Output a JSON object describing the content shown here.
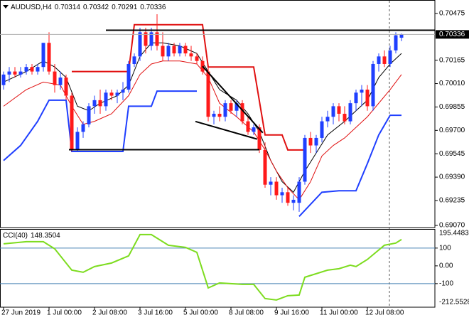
{
  "chart_data": {
    "type": "candlestick",
    "title": "AUDUSD,H4",
    "xlim": [
      -0.625,
      75.875
    ],
    "ylim": [
      0.6907,
      0.70564
    ],
    "yticks": [
      0.70475,
      0.70165,
      {
        "value": 0.7001,
        "label": "0.70010"
      },
      0.69855,
      {
        "value": 0.697,
        "label": "0.69700"
      },
      0.69545,
      {
        "value": 0.6939,
        "label": "0.69390"
      },
      0.69235,
      {
        "value": 0.6907,
        "label": "0.69070"
      }
    ],
    "xticks": [
      {
        "value": 0,
        "label": "27 Jun 2019"
      },
      {
        "value": 8,
        "label": "1 Jul 00:00"
      },
      {
        "value": 16,
        "label": "2 Jul 08:00"
      },
      {
        "value": 24,
        "label": "3 Jul 16:00"
      },
      {
        "value": 32,
        "label": "5 Jul 00:00"
      },
      {
        "value": 40,
        "label": "8 Jul 08:00"
      },
      {
        "value": 48,
        "label": "9 Jul 16:00"
      },
      {
        "value": 56,
        "label": "11 Jul 00:00"
      },
      {
        "value": 64,
        "label": "12 Jul 08:00"
      }
    ],
    "up_color": "#1f3fff",
    "down_color": "#ff1a1a",
    "open": [
      0.7,
      0.7007,
      0.7009,
      0.7007,
      0.7009,
      0.7012,
      0.7009,
      0.7012,
      0.7028,
      0.7009,
      0.7,
      0.7005,
      0.6993,
      0.6957,
      0.6969,
      0.6974,
      0.6986,
      0.699,
      0.6986,
      0.6995,
      0.6993,
      0.6995,
      0.6997,
      0.7014,
      0.7019,
      0.7035,
      0.7026,
      0.7035,
      0.7026,
      0.7019,
      0.7026,
      0.7021,
      0.7026,
      0.7021,
      0.7019,
      0.7016,
      0.7009,
      0.6979,
      0.6981,
      0.6979,
      0.6988,
      0.6983,
      0.6988,
      0.6976,
      0.6969,
      0.6972,
      0.6957,
      0.6934,
      0.6936,
      0.6927,
      0.6929,
      0.6922,
      0.6922,
      0.6936,
      0.6965,
      0.696,
      0.6965,
      0.6976,
      0.6979,
      0.6986,
      0.6981,
      0.6976,
      0.6988,
      0.6995,
      0.6997,
      0.6986,
      0.7014,
      0.7019,
      0.7014,
      0.7023,
      0.70314
    ],
    "high": [
      0.7009,
      0.7012,
      0.7012,
      0.7012,
      0.7014,
      0.7014,
      0.7014,
      0.7028,
      0.7035,
      0.7014,
      0.7009,
      0.7007,
      0.6995,
      0.6972,
      0.6976,
      0.6988,
      0.6993,
      0.6997,
      0.6997,
      0.6997,
      0.6997,
      0.7002,
      0.7016,
      0.7021,
      0.7038,
      0.7038,
      0.7038,
      0.7047,
      0.7035,
      0.7028,
      0.7028,
      0.7028,
      0.7028,
      0.7026,
      0.7021,
      0.7019,
      0.7012,
      0.6983,
      0.6986,
      0.699,
      0.699,
      0.699,
      0.699,
      0.6979,
      0.6974,
      0.6974,
      0.6962,
      0.6939,
      0.6939,
      0.6932,
      0.6932,
      0.6927,
      0.6939,
      0.6967,
      0.6969,
      0.6967,
      0.6979,
      0.6983,
      0.6988,
      0.6988,
      0.6986,
      0.699,
      0.6997,
      0.7,
      0.7,
      0.7016,
      0.7021,
      0.7023,
      0.7026,
      0.7035,
      0.70342
    ],
    "low": [
      0.6997,
      0.7002,
      0.7005,
      0.7005,
      0.7007,
      0.7007,
      0.7007,
      0.7009,
      0.7007,
      0.6995,
      0.6997,
      0.699,
      0.6956,
      0.6956,
      0.6965,
      0.6972,
      0.6981,
      0.6981,
      0.6983,
      0.699,
      0.6988,
      0.699,
      0.6995,
      0.7012,
      0.7016,
      0.7021,
      0.7023,
      0.7023,
      0.7016,
      0.7016,
      0.7019,
      0.7019,
      0.7019,
      0.7016,
      0.7014,
      0.7007,
      0.6976,
      0.6974,
      0.6976,
      0.6976,
      0.6981,
      0.6979,
      0.6974,
      0.6967,
      0.6967,
      0.6955,
      0.6932,
      0.6927,
      0.6924,
      0.6922,
      0.692,
      0.6917,
      0.6916,
      0.6934,
      0.6955,
      0.6955,
      0.6962,
      0.6972,
      0.6974,
      0.6976,
      0.6974,
      0.6974,
      0.6983,
      0.6986,
      0.6983,
      0.6983,
      0.7009,
      0.7012,
      0.7012,
      0.7021,
      0.70291
    ],
    "close": [
      0.7007,
      0.7009,
      0.7007,
      0.7009,
      0.7012,
      0.7009,
      0.7012,
      0.7028,
      0.7009,
      0.7,
      0.7005,
      0.6993,
      0.6957,
      0.6969,
      0.6974,
      0.6986,
      0.699,
      0.6986,
      0.6995,
      0.6993,
      0.6995,
      0.6997,
      0.7014,
      0.7019,
      0.7035,
      0.7026,
      0.7035,
      0.7026,
      0.7019,
      0.7026,
      0.7021,
      0.7026,
      0.7021,
      0.7019,
      0.7016,
      0.7009,
      0.6979,
      0.6981,
      0.6979,
      0.6988,
      0.6983,
      0.6988,
      0.6976,
      0.6969,
      0.6972,
      0.6957,
      0.6934,
      0.6936,
      0.6927,
      0.6929,
      0.6922,
      0.6924,
      0.6936,
      0.6965,
      0.696,
      0.6965,
      0.6976,
      0.6979,
      0.6986,
      0.6981,
      0.6976,
      0.6988,
      0.6995,
      0.6997,
      0.6986,
      0.7014,
      0.7019,
      0.7014,
      0.7023,
      0.7033,
      0.70336
    ],
    "lines": [
      {
        "color": "#000000",
        "width": 1,
        "x": [
          0,
          4,
          7,
          9,
          11,
          13,
          15,
          17,
          20,
          22,
          24,
          26,
          28,
          31,
          34,
          36,
          38,
          41,
          43,
          45,
          47,
          49,
          51,
          53,
          55,
          57,
          60,
          62,
          64,
          66,
          68,
          70
        ],
        "values": [
          0.7002,
          0.7009,
          0.7016,
          0.7012,
          0.7005,
          0.6986,
          0.6983,
          0.6988,
          0.6993,
          0.7,
          0.7019,
          0.7028,
          0.7028,
          0.7026,
          0.7021,
          0.7009,
          0.6997,
          0.699,
          0.6981,
          0.6969,
          0.695,
          0.6936,
          0.6929,
          0.6943,
          0.6955,
          0.6967,
          0.6976,
          0.6983,
          0.699,
          0.7005,
          0.7014,
          0.7021
        ]
      },
      {
        "color": "#e01010",
        "width": 1,
        "x": [
          0,
          4,
          7,
          10,
          12,
          14,
          16,
          19,
          22,
          24,
          26,
          28,
          31,
          34,
          36,
          38,
          41,
          44,
          46,
          48,
          50,
          52,
          54,
          56,
          58,
          60,
          62,
          64,
          66,
          68,
          70
        ],
        "values": [
          0.6986,
          0.6997,
          0.7002,
          0.7,
          0.6986,
          0.6974,
          0.6976,
          0.6981,
          0.6993,
          0.7007,
          0.7014,
          0.7016,
          0.7016,
          0.7014,
          0.7005,
          0.6988,
          0.6979,
          0.6969,
          0.6957,
          0.6943,
          0.6932,
          0.6924,
          0.6936,
          0.6953,
          0.696,
          0.6965,
          0.6972,
          0.6979,
          0.6988,
          0.6997,
          0.7007
        ]
      },
      {
        "color": "#e01010",
        "width": 2,
        "x": [
          12,
          22,
          23,
          35,
          36,
          44,
          46,
          49,
          50,
          53
        ],
        "values": [
          0.7009,
          0.7009,
          0.704,
          0.704,
          0.7012,
          0.7012,
          0.6967,
          0.6967,
          0.6957,
          0.6957
        ]
      },
      {
        "color": "#1f3fff",
        "width": 2,
        "x": [
          0,
          3,
          6,
          8,
          11,
          12,
          21,
          22,
          26,
          27,
          34,
          35,
          52,
          56,
          59,
          62,
          64,
          66,
          68,
          70
        ],
        "values": [
          0.695,
          0.696,
          0.6976,
          0.699,
          0.699,
          0.6956,
          0.6956,
          0.6986,
          0.6986,
          0.6996,
          0.6996,
          null,
          0.6913,
          0.6929,
          0.693,
          0.693,
          0.6948,
          0.6967,
          0.698,
          0.698
        ]
      }
    ],
    "trendline_color": "#000000",
    "trendlines": [
      {
        "x": [
          18,
          76
        ],
        "values": [
          0.70364,
          0.70364
        ]
      },
      {
        "x": [
          11.5,
          45
        ],
        "values": [
          0.69572,
          0.69572
        ]
      },
      {
        "x": [
          35,
          45.6
        ],
        "values": [
          0.70125,
          0.69684
        ]
      },
      {
        "x": [
          33.75,
          44.6
        ],
        "values": [
          0.69759,
          0.69642
        ]
      }
    ],
    "indicator": {
      "type": "line",
      "title": "CCI(40)",
      "color": "#7ddc1f",
      "ylim": [
        -212.5528,
        195.4483
      ],
      "yticks": [
        100,
        {
          "value": 0,
          "label": "0.00"
        },
        -100
      ],
      "levels": [
        100,
        -100
      ],
      "level_color": "#4682b4",
      "x": [
        0,
        4,
        7,
        9,
        12,
        14,
        16,
        19,
        22,
        24,
        26,
        29,
        32,
        34,
        36,
        38,
        42,
        44,
        46,
        48,
        50,
        52,
        53,
        55,
        57,
        59,
        61,
        62,
        64,
        67,
        69,
        70
      ],
      "values": [
        124,
        136,
        136,
        96,
        -24,
        -36,
        -4,
        16,
        56,
        176,
        176,
        116,
        104,
        76,
        -124,
        -96,
        -104,
        -104,
        -184,
        -192,
        -168,
        -164,
        -64,
        -44,
        -24,
        -16,
        4,
        -4,
        36,
        116,
        128,
        148.3504
      ]
    }
  }
}
